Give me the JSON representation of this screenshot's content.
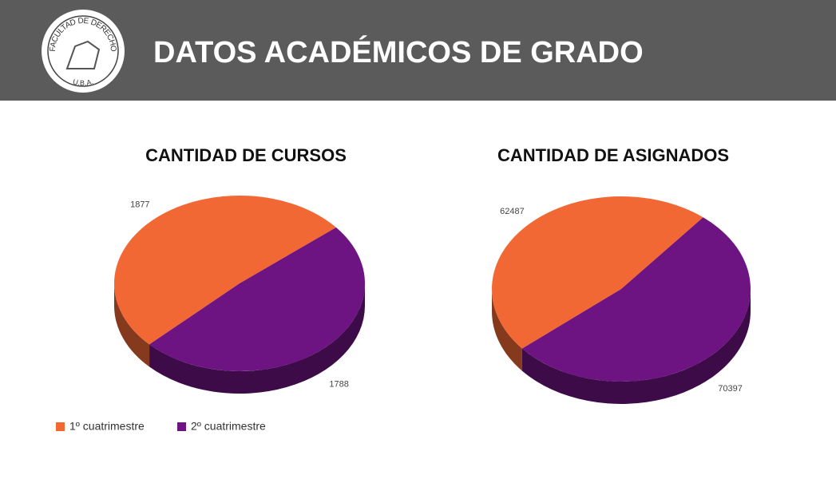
{
  "header": {
    "title": "DATOS ACADÉMICOS DE GRADO",
    "logo_top": "FACULTAD DE DERECHO",
    "logo_bottom": "U.B.A."
  },
  "chart_data": [
    {
      "type": "pie",
      "title": "CANTIDAD DE CURSOS",
      "categories": [
        "1º cuatrimestre",
        "2º cuatrimestre"
      ],
      "values": [
        1877,
        1788
      ],
      "colors": [
        "#f26835",
        "#6e1482"
      ],
      "legend": "bottom-left"
    },
    {
      "type": "pie",
      "title": "CANTIDAD DE ASIGNADOS",
      "categories": [
        "1º cuatrimestre",
        "2º cuatrimestre"
      ],
      "values": [
        62487,
        70397
      ],
      "colors": [
        "#f26835",
        "#6e1482"
      ]
    }
  ]
}
